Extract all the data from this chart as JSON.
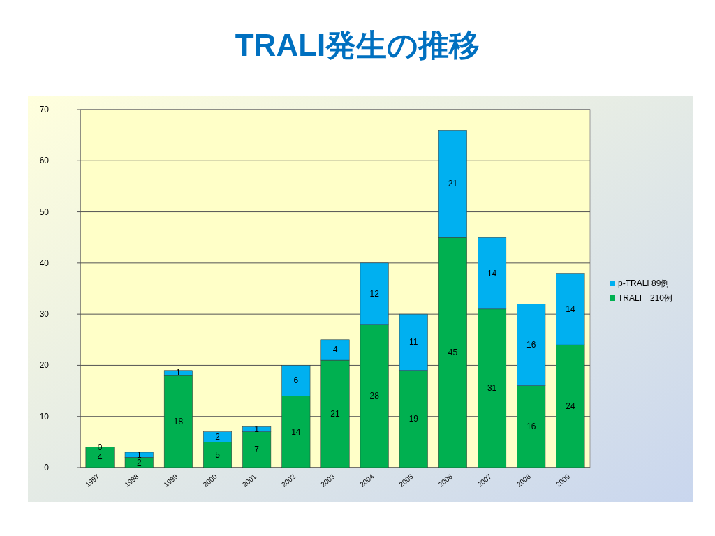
{
  "chart_data": {
    "type": "bar",
    "title": "TRALI発生の推移",
    "categories": [
      "1997",
      "1998",
      "1999",
      "2000",
      "2001",
      "2002",
      "2003",
      "2004",
      "2005",
      "2006",
      "2007",
      "2008",
      "2009"
    ],
    "series": [
      {
        "name": "TRALI　210例",
        "color": "#00b050",
        "values": [
          4,
          2,
          18,
          5,
          7,
          14,
          21,
          28,
          19,
          45,
          31,
          16,
          24
        ]
      },
      {
        "name": "p-TRALI  89例",
        "color": "#00b0f0",
        "values": [
          0,
          1,
          1,
          2,
          1,
          6,
          4,
          12,
          11,
          21,
          14,
          16,
          14
        ]
      }
    ],
    "stacked": true,
    "data_labels": true,
    "ylim": [
      0,
      70
    ],
    "yticks": [
      0,
      10,
      20,
      30,
      40,
      50,
      60,
      70
    ],
    "grid": "y",
    "legend": "right"
  }
}
